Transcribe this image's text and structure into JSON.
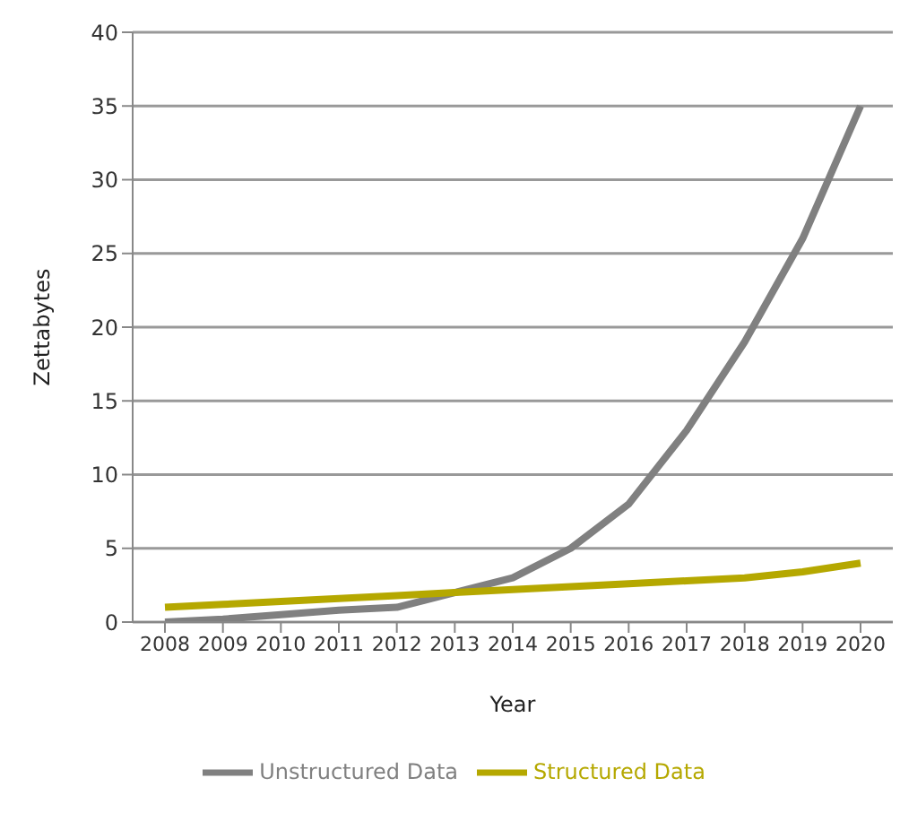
{
  "chart_data": {
    "type": "line",
    "xlabel": "Year",
    "ylabel": "Zettabytes",
    "categories": [
      "2008",
      "2009",
      "2010",
      "2011",
      "2012",
      "2013",
      "2014",
      "2015",
      "2016",
      "2017",
      "2018",
      "2019",
      "2020"
    ],
    "series": [
      {
        "name": "Unstructured Data",
        "color": "#808080",
        "values": [
          0,
          0.2,
          0.5,
          0.8,
          1.0,
          2.0,
          3.0,
          5.0,
          8.0,
          13.0,
          19.0,
          26.0,
          35.0
        ]
      },
      {
        "name": "Structured Data",
        "color": "#b5a800",
        "values": [
          1.0,
          1.2,
          1.4,
          1.6,
          1.8,
          2.0,
          2.2,
          2.4,
          2.6,
          2.8,
          3.0,
          3.4,
          4.0
        ]
      }
    ],
    "ylim": [
      0,
      40
    ],
    "yticks": [
      0,
      5,
      10,
      15,
      20,
      25,
      30,
      35,
      40
    ],
    "grid": "y",
    "legend": "bottom",
    "marker": "none",
    "line_style": "solid"
  }
}
